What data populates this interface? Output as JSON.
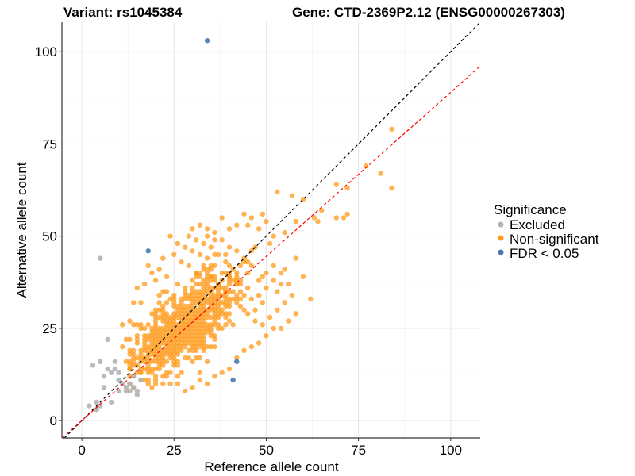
{
  "chart_data": {
    "type": "scatter",
    "title_left": "Variant: rs1045384",
    "title_right": "Gene: CTD-2369P2.12 (ENSG00000267303)",
    "xlabel": "Reference allele count",
    "ylabel": "Alternative allele count",
    "xlim": [
      -5.4,
      108
    ],
    "ylim": [
      -4.7,
      108
    ],
    "x_ticks": [
      0,
      25,
      50,
      75,
      100
    ],
    "y_ticks": [
      0,
      25,
      50,
      75,
      100
    ],
    "x_tick_labels": [
      "0",
      "25",
      "50",
      "75",
      "100"
    ],
    "y_tick_labels": [
      "0",
      "25",
      "50",
      "75",
      "100"
    ],
    "x_minor": [
      12.5,
      37.5,
      62.5,
      87.5
    ],
    "y_minor": [
      12.5,
      37.5,
      62.5,
      87.5
    ],
    "grid": true,
    "reference_lines": [
      {
        "name": "identity",
        "slope": 1.0,
        "intercept": 0,
        "color": "#000000",
        "style": "dashed"
      },
      {
        "name": "fit",
        "slope": 0.89,
        "intercept": 0,
        "color": "#ff0000",
        "style": "dashed"
      }
    ],
    "legend": {
      "title": "Significance",
      "position": "right",
      "entries": [
        {
          "label": "Excluded",
          "color": "#b3b3b3"
        },
        {
          "label": "Non-significant",
          "color": "#ff9a1a"
        },
        {
          "label": "FDR < 0.05",
          "color": "#4a78b0"
        }
      ]
    },
    "series": [
      {
        "name": "Excluded",
        "color": "#b3b3b3",
        "points": [
          [
            5,
            44
          ],
          [
            3,
            15
          ],
          [
            5,
            16
          ],
          [
            7,
            14
          ],
          [
            8,
            13
          ],
          [
            9,
            14
          ],
          [
            6,
            12
          ],
          [
            2,
            4
          ],
          [
            4,
            3
          ],
          [
            5,
            4
          ],
          [
            8,
            5
          ],
          [
            10,
            8
          ],
          [
            12,
            8
          ],
          [
            11,
            10
          ],
          [
            10,
            13
          ],
          [
            9,
            16
          ],
          [
            7,
            22
          ],
          [
            13,
            8
          ],
          [
            14,
            9
          ],
          [
            15,
            7
          ],
          [
            12,
            9
          ],
          [
            16,
            11
          ],
          [
            14,
            12
          ],
          [
            6,
            9
          ],
          [
            10,
            11
          ],
          [
            13,
            10
          ],
          [
            15,
            8
          ],
          [
            4,
            5
          ]
        ]
      },
      {
        "name": "Non-significant",
        "color": "#ff9a1a",
        "points": [
          [
            84,
            79
          ],
          [
            84,
            63
          ],
          [
            77,
            69
          ],
          [
            81,
            67
          ],
          [
            69,
            64
          ],
          [
            72,
            63
          ],
          [
            72,
            56
          ],
          [
            69,
            55
          ],
          [
            71,
            55
          ],
          [
            53,
            62
          ],
          [
            57,
            61
          ],
          [
            62,
            33
          ],
          [
            64,
            54
          ],
          [
            65,
            57
          ],
          [
            63,
            55
          ],
          [
            60,
            60
          ],
          [
            58,
            54
          ],
          [
            55,
            51
          ],
          [
            52,
            50
          ],
          [
            50,
            54
          ],
          [
            51,
            48
          ],
          [
            48,
            52
          ],
          [
            47,
            47
          ],
          [
            46,
            46
          ],
          [
            55,
            41
          ],
          [
            58,
            44
          ],
          [
            60,
            39
          ],
          [
            56,
            37
          ],
          [
            54,
            37
          ],
          [
            53,
            35
          ],
          [
            49,
            56
          ],
          [
            46,
            55
          ],
          [
            44,
            56
          ],
          [
            45,
            53
          ],
          [
            42,
            53
          ],
          [
            40,
            52
          ],
          [
            38,
            55
          ],
          [
            36,
            49
          ],
          [
            34,
            50
          ],
          [
            30,
            52
          ],
          [
            24,
            50
          ],
          [
            18,
            42
          ],
          [
            20,
            38
          ],
          [
            15,
            36
          ],
          [
            14,
            32
          ],
          [
            16,
            32
          ],
          [
            13,
            27
          ],
          [
            14,
            26
          ],
          [
            11,
            26
          ],
          [
            12,
            22
          ],
          [
            11,
            20
          ],
          [
            13,
            22
          ],
          [
            12,
            16
          ],
          [
            14,
            17
          ],
          [
            15,
            15
          ],
          [
            13,
            14
          ],
          [
            16,
            13
          ],
          [
            18,
            11
          ],
          [
            20,
            12
          ],
          [
            22,
            10
          ],
          [
            24,
            10
          ],
          [
            26,
            10
          ],
          [
            28,
            8
          ],
          [
            30,
            9
          ],
          [
            32,
            11
          ],
          [
            34,
            10
          ],
          [
            36,
            12
          ],
          [
            38,
            13
          ],
          [
            40,
            14
          ],
          [
            42,
            17
          ],
          [
            44,
            19
          ],
          [
            46,
            20
          ],
          [
            48,
            21
          ],
          [
            50,
            23
          ],
          [
            52,
            25
          ],
          [
            54,
            25
          ],
          [
            56,
            27
          ],
          [
            58,
            29
          ],
          [
            47,
            30
          ],
          [
            49,
            32
          ],
          [
            44,
            34
          ],
          [
            42,
            37
          ],
          [
            40,
            39
          ],
          [
            38,
            40
          ],
          [
            36,
            42
          ],
          [
            34,
            44
          ],
          [
            32,
            45
          ],
          [
            30,
            46
          ],
          [
            28,
            47
          ],
          [
            26,
            48
          ],
          [
            22,
            44
          ],
          [
            21,
            41
          ],
          [
            23,
            39
          ],
          [
            19,
            40
          ],
          [
            17,
            37
          ],
          [
            25,
            45
          ],
          [
            27,
            43
          ],
          [
            29,
            42
          ],
          [
            31,
            40
          ],
          [
            33,
            41
          ],
          [
            35,
            39
          ],
          [
            37,
            37
          ],
          [
            39,
            35
          ],
          [
            41,
            33
          ],
          [
            43,
            31
          ],
          [
            45,
            29
          ],
          [
            47,
            27
          ],
          [
            49,
            26
          ],
          [
            51,
            28
          ],
          [
            53,
            30
          ],
          [
            55,
            32
          ],
          [
            57,
            34
          ],
          [
            45,
            36
          ],
          [
            43,
            38
          ],
          [
            41,
            41
          ],
          [
            39,
            43
          ],
          [
            37,
            45
          ],
          [
            35,
            47
          ],
          [
            33,
            48
          ],
          [
            31,
            49
          ],
          [
            29,
            50
          ],
          [
            48,
            38
          ],
          [
            50,
            40
          ],
          [
            52,
            42
          ],
          [
            46,
            42
          ],
          [
            44,
            44
          ],
          [
            42,
            46
          ],
          [
            40,
            47
          ],
          [
            38,
            49
          ],
          [
            36,
            51
          ],
          [
            34,
            52
          ],
          [
            32,
            53
          ],
          [
            52,
            38
          ],
          [
            54,
            40
          ],
          [
            50,
            36
          ],
          [
            48,
            34
          ],
          [
            46,
            33
          ]
        ]
      },
      {
        "name": "FDR < 0.05",
        "color": "#4a78b0",
        "points": [
          [
            34,
            103
          ],
          [
            18,
            46
          ],
          [
            42,
            16
          ],
          [
            41,
            11
          ]
        ]
      }
    ],
    "dense_cluster": {
      "name": "Non-significant",
      "color": "#ff9a1a",
      "x_range": [
        13,
        45
      ],
      "y_range": [
        9,
        45
      ],
      "center": [
        28,
        26
      ],
      "spread": [
        7.5,
        7.5
      ]
    }
  }
}
